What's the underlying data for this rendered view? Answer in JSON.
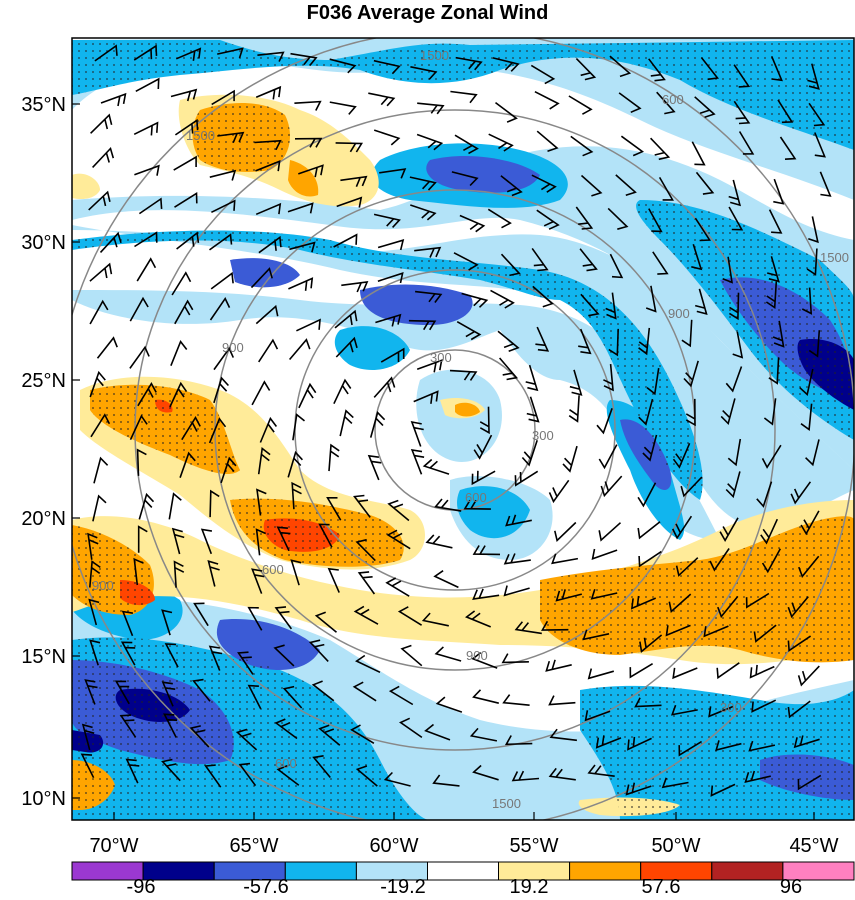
{
  "title": "F036 Average Zonal Wind",
  "lat_ticks": [
    "35°N",
    "30°N",
    "25°N",
    "20°N",
    "15°N",
    "10°N"
  ],
  "lon_ticks": [
    "70°W",
    "65°W",
    "60°W",
    "55°W",
    "50°W",
    "45°W"
  ],
  "colorbar": {
    "colors": [
      "#9b38d1",
      "#00008b",
      "#3b5bd6",
      "#11b5ee",
      "#b3e3f8",
      "#ffffff",
      "#ffeb99",
      "#ffa500",
      "#ff4500",
      "#b22222",
      "#ff80c0"
    ],
    "labels": [
      "-96",
      "-57.6",
      "-19.2",
      "19.2",
      "57.6",
      "96"
    ]
  },
  "range_rings": {
    "labels": [
      "300",
      "600",
      "900",
      "1500",
      "1500",
      "900",
      "1500",
      "300",
      "600",
      "900",
      "600",
      "900",
      "600",
      "1500",
      "300"
    ]
  }
}
